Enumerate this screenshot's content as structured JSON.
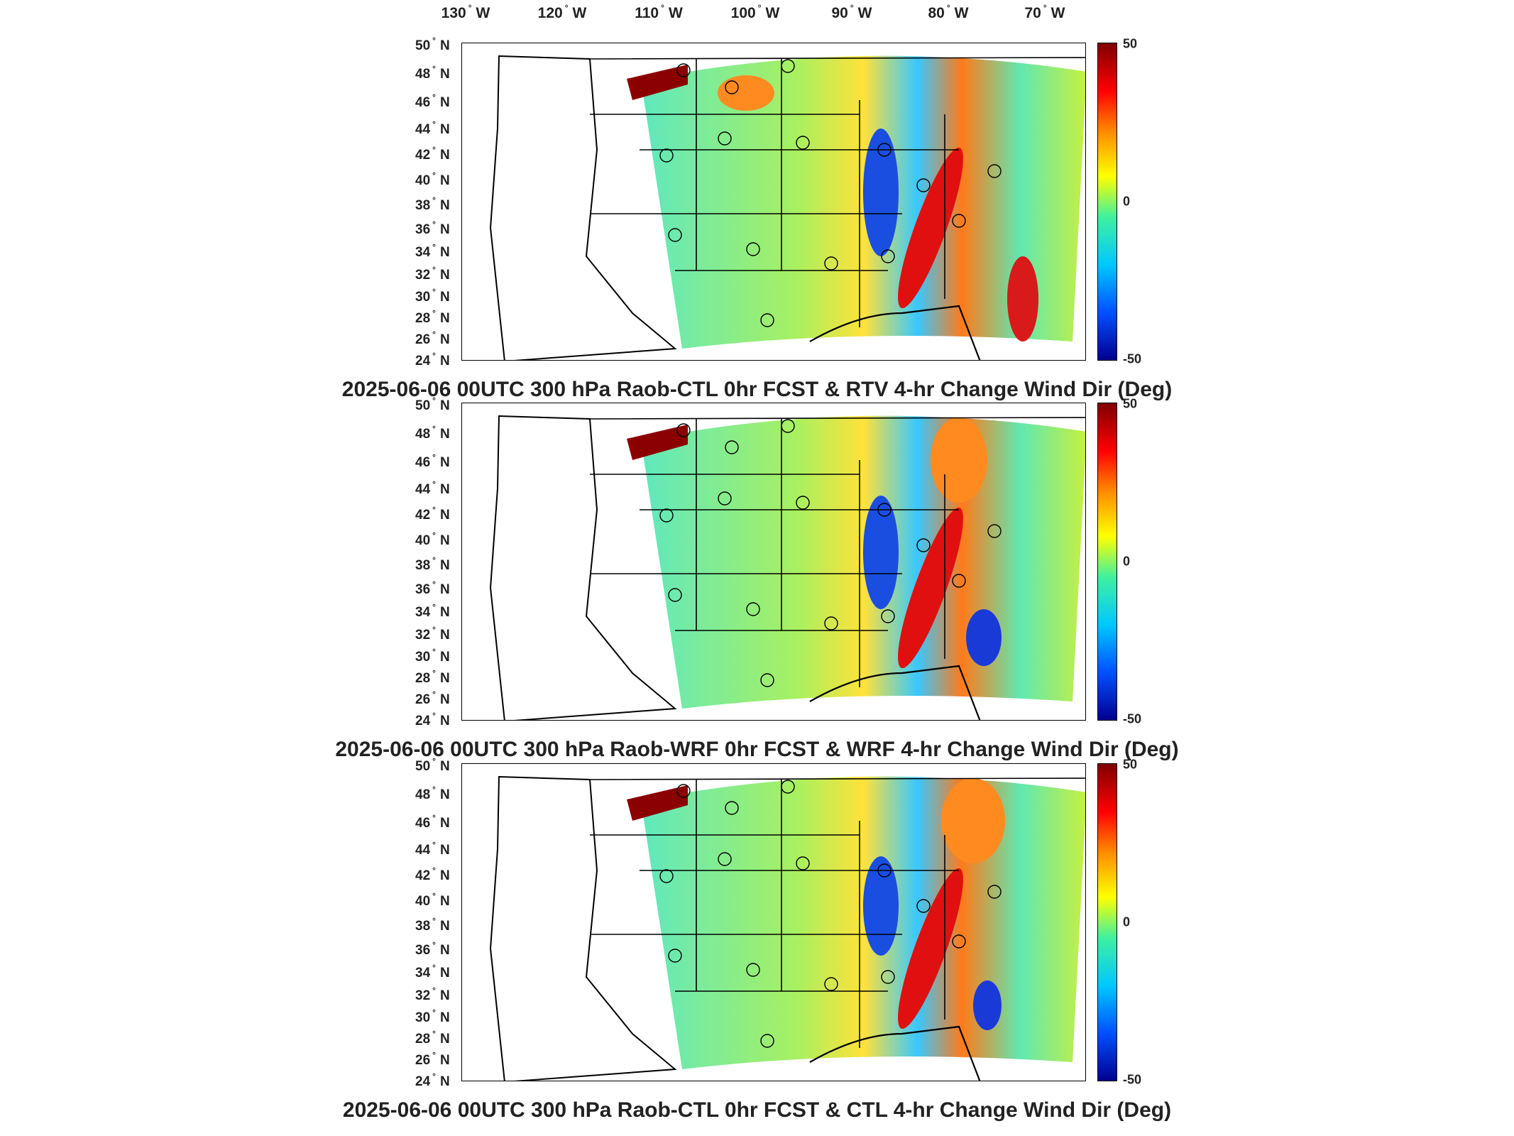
{
  "lon_labels": [
    {
      "deg": "130",
      "hemi": "W"
    },
    {
      "deg": "120",
      "hemi": "W"
    },
    {
      "deg": "110",
      "hemi": "W"
    },
    {
      "deg": "100",
      "hemi": "W"
    },
    {
      "deg": "90",
      "hemi": "W"
    },
    {
      "deg": "80",
      "hemi": "W"
    },
    {
      "deg": "70",
      "hemi": "W"
    }
  ],
  "lat_labels": [
    {
      "deg": "50",
      "hemi": "N"
    },
    {
      "deg": "48",
      "hemi": "N"
    },
    {
      "deg": "46",
      "hemi": "N"
    },
    {
      "deg": "44",
      "hemi": "N"
    },
    {
      "deg": "42",
      "hemi": "N"
    },
    {
      "deg": "40",
      "hemi": "N"
    },
    {
      "deg": "38",
      "hemi": "N"
    },
    {
      "deg": "36",
      "hemi": "N"
    },
    {
      "deg": "34",
      "hemi": "N"
    },
    {
      "deg": "32",
      "hemi": "N"
    },
    {
      "deg": "30",
      "hemi": "N"
    },
    {
      "deg": "28",
      "hemi": "N"
    },
    {
      "deg": "26",
      "hemi": "N"
    },
    {
      "deg": "24",
      "hemi": "N"
    }
  ],
  "colorbar": {
    "max": "50",
    "mid": "0",
    "min": "-50",
    "colors": [
      "#7f0000",
      "#ff0000",
      "#ff8c00",
      "#ffff00",
      "#3ff0a0",
      "#00c8ff",
      "#0050ff",
      "#00008f"
    ]
  },
  "panels": [
    {
      "title": "2025-06-06 00UTC 300 hPa Raob-CTL 0hr FCST & RTV 4-hr Change Wind Dir (Deg)"
    },
    {
      "title": "2025-06-06 00UTC 300 hPa Raob-WRF 0hr FCST & WRF 4-hr Change Wind Dir (Deg)"
    },
    {
      "title": "2025-06-06 00UTC 300 hPa Raob-CTL 0hr FCST & CTL 4-hr Change Wind Dir (Deg)"
    }
  ]
}
